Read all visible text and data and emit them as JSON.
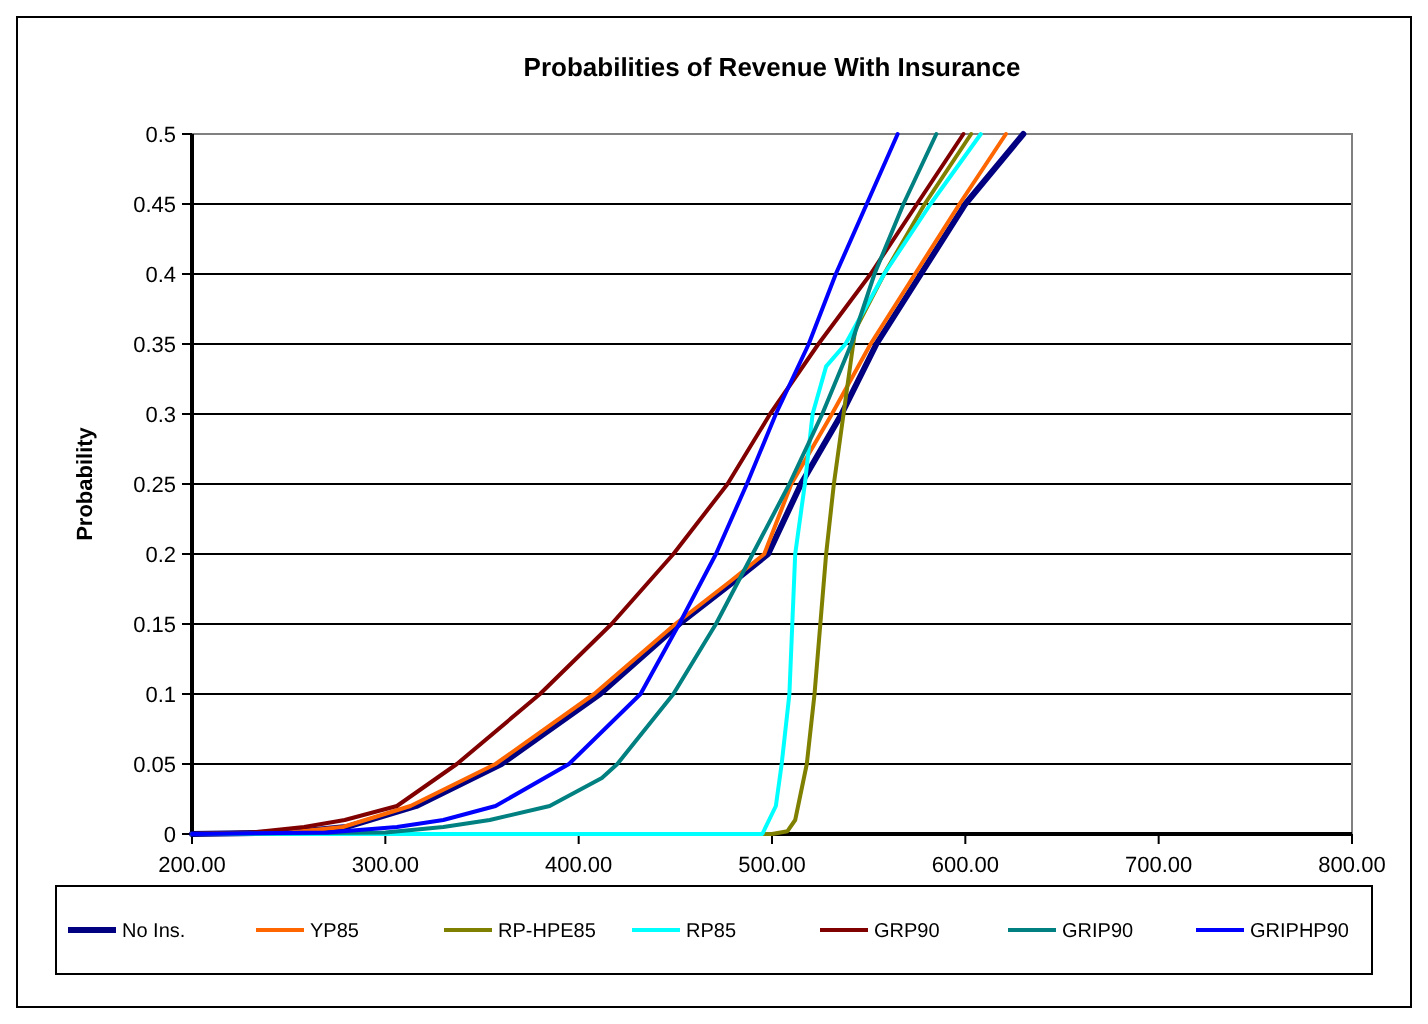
{
  "chart_data": {
    "type": "line",
    "title": "Probabilities of Revenue With Insurance",
    "ylabel": "Probability",
    "xlim": [
      200,
      800
    ],
    "xticks": [
      {
        "value": 200,
        "label": "200.00"
      },
      {
        "value": 300,
        "label": "300.00"
      },
      {
        "value": 400,
        "label": "400.00"
      },
      {
        "value": 500,
        "label": "500.00"
      },
      {
        "value": 600,
        "label": "600.00"
      },
      {
        "value": 700,
        "label": "700.00"
      },
      {
        "value": 800,
        "label": "800.00"
      }
    ],
    "ylim": [
      0,
      0.5
    ],
    "yticks": [
      0,
      0.05,
      0.1,
      0.15,
      0.2,
      0.25,
      0.3,
      0.35,
      0.4,
      0.45,
      0.5
    ],
    "grid": "y",
    "legend": "bottom",
    "series": [
      {
        "name": "No Ins.",
        "color": "#000080",
        "x": [
          200,
          250,
          280,
          316,
          360,
          411,
          452,
          480,
          498,
          515,
          536,
          554,
          577,
          600,
          630
        ],
        "values": [
          0,
          0.001,
          0.005,
          0.02,
          0.05,
          0.1,
          0.15,
          0.18,
          0.2,
          0.25,
          0.3,
          0.35,
          0.4,
          0.45,
          0.5
        ]
      },
      {
        "name": "YP85",
        "color": "#ff6600",
        "x": [
          200,
          250,
          278,
          313,
          357,
          408,
          450,
          478,
          496,
          510,
          531,
          551,
          574,
          597,
          621
        ],
        "values": [
          0,
          0.001,
          0.005,
          0.02,
          0.05,
          0.1,
          0.15,
          0.18,
          0.2,
          0.25,
          0.3,
          0.35,
          0.4,
          0.45,
          0.5
        ]
      },
      {
        "name": "RP-HPE85",
        "color": "#808000",
        "x": [
          200,
          500,
          508,
          512,
          518,
          522,
          525,
          528,
          532,
          537,
          543,
          558,
          579,
          603
        ],
        "values": [
          0,
          0,
          0.002,
          0.01,
          0.05,
          0.1,
          0.15,
          0.2,
          0.25,
          0.3,
          0.36,
          0.4,
          0.45,
          0.5
        ]
      },
      {
        "name": "RP85",
        "color": "#00ffff",
        "x": [
          200,
          495,
          502,
          505,
          509,
          512,
          517,
          521,
          528,
          538,
          558,
          582,
          608
        ],
        "values": [
          0,
          0,
          0.02,
          0.05,
          0.1,
          0.2,
          0.25,
          0.3,
          0.334,
          0.35,
          0.4,
          0.45,
          0.5
        ]
      },
      {
        "name": "GRP90",
        "color": "#800000",
        "x": [
          200,
          230,
          258,
          279,
          306,
          337,
          380,
          417,
          449,
          477,
          499,
          524,
          551,
          575,
          599
        ],
        "values": [
          0,
          0.001,
          0.005,
          0.01,
          0.02,
          0.05,
          0.1,
          0.15,
          0.2,
          0.25,
          0.3,
          0.35,
          0.4,
          0.45,
          0.5
        ]
      },
      {
        "name": "GRIP90",
        "color": "#008080",
        "x": [
          200,
          300,
          330,
          354,
          385,
          412,
          420,
          449,
          471,
          490,
          509,
          526,
          541,
          553,
          568,
          585
        ],
        "values": [
          0,
          0.001,
          0.005,
          0.01,
          0.02,
          0.04,
          0.05,
          0.1,
          0.15,
          0.2,
          0.25,
          0.3,
          0.35,
          0.4,
          0.45,
          0.5
        ]
      },
      {
        "name": "GRIPHP90",
        "color": "#0000ff",
        "x": [
          200,
          270,
          306,
          330,
          357,
          395,
          432,
          452,
          471,
          487,
          502,
          519,
          533,
          549,
          565
        ],
        "values": [
          0,
          0.001,
          0.005,
          0.01,
          0.02,
          0.05,
          0.1,
          0.15,
          0.2,
          0.25,
          0.3,
          0.35,
          0.4,
          0.45,
          0.5
        ]
      }
    ]
  }
}
